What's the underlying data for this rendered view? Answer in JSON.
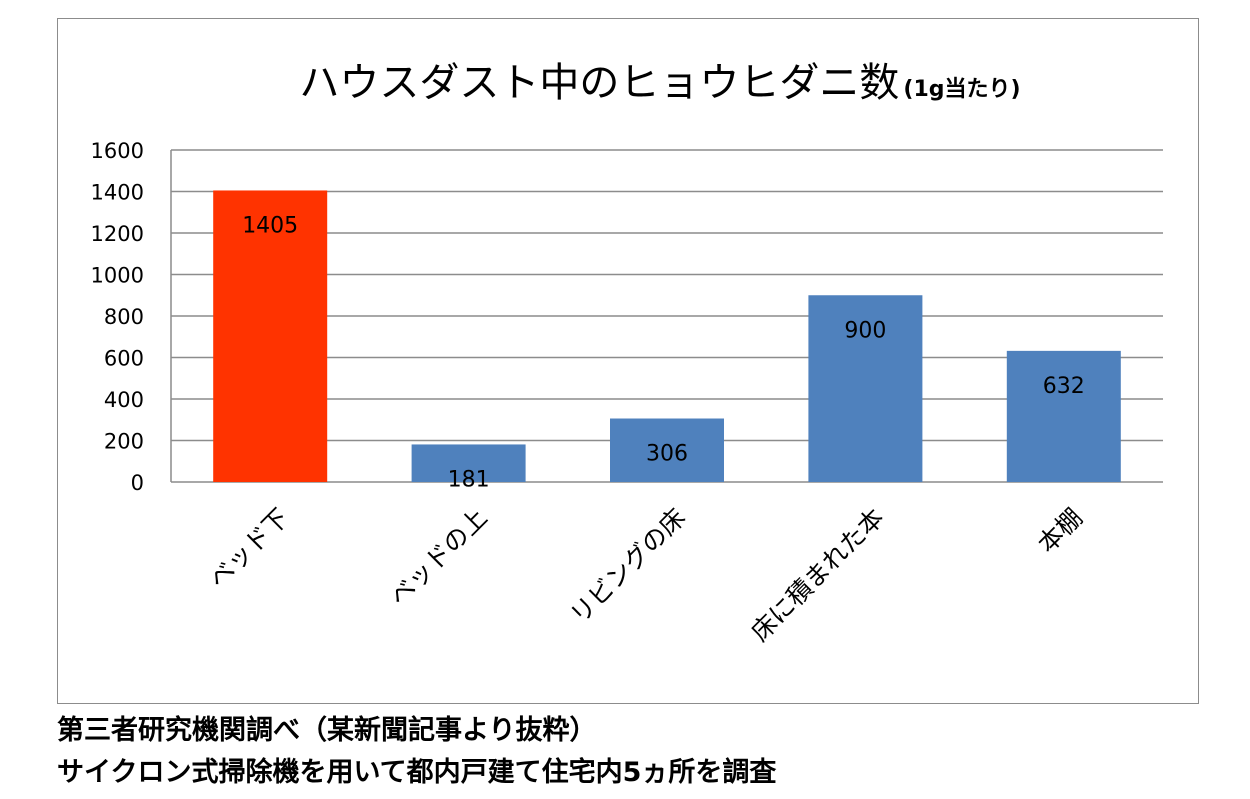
{
  "chart_data": {
    "type": "bar",
    "title": "ハウスダスト中のヒョウヒダニ数",
    "subtitle": "(1g当たり)",
    "categories": [
      "ベッド下",
      "ベッドの上",
      "リビングの床",
      "床に積まれた本",
      "本棚"
    ],
    "values": [
      1405,
      181,
      306,
      900,
      632
    ],
    "data_labels": [
      "1405",
      "181",
      "306",
      "900",
      "632"
    ],
    "bar_colors": [
      "#ff3300",
      "#4f81bd",
      "#4f81bd",
      "#4f81bd",
      "#4f81bd"
    ],
    "ylim": [
      0,
      1600
    ],
    "yticks": [
      0,
      200,
      400,
      600,
      800,
      1000,
      1200,
      1400,
      1600
    ],
    "ytick_labels": [
      "0",
      "200",
      "400",
      "600",
      "800",
      "1000",
      "1200",
      "1400",
      "1600"
    ],
    "grid": true,
    "legend": false,
    "xlabel": "",
    "ylabel": ""
  },
  "captions": {
    "line1": "第三者研究機関調べ（某新聞記事より抜粋）",
    "line2": "サイクロン式掃除機を用いて都内戸建て住宅内5ヵ所を調査"
  },
  "colors": {
    "highlight_bar": "#ff3300",
    "bar": "#4f81bd",
    "grid": "#8c8c8c",
    "frame": "#8c8c8c"
  }
}
